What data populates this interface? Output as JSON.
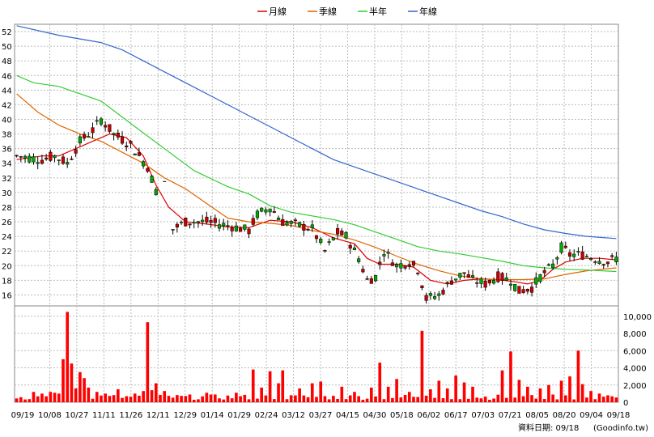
{
  "chart_data": [
    {
      "type": "candlestick",
      "y_ticks": [
        16,
        18,
        20,
        22,
        24,
        26,
        28,
        30,
        32,
        34,
        36,
        38,
        40,
        42,
        44,
        46,
        48,
        50,
        52
      ],
      "ylim": [
        14.5,
        53
      ],
      "x_tick_labels": [
        "09/19",
        "10/08",
        "10/27",
        "11/11",
        "11/26",
        "12/11",
        "12/29",
        "01/14",
        "01/29",
        "02/24",
        "03/12",
        "03/27",
        "04/15",
        "04/30",
        "05/18",
        "06/02",
        "06/17",
        "07/03",
        "07/21",
        "08/05",
        "08/20",
        "09/04",
        "09/18"
      ],
      "grid": true,
      "legend_position": "top-center",
      "up_color": "#cc0000",
      "down_color": "#00aa00",
      "price_path": [
        [
          0,
          35
        ],
        [
          6,
          34.5
        ],
        [
          9,
          35
        ],
        [
          12,
          34
        ],
        [
          15,
          37
        ],
        [
          18,
          38.5
        ],
        [
          20,
          40
        ],
        [
          23,
          38
        ],
        [
          27,
          36.5
        ],
        [
          31,
          33.5
        ],
        [
          35,
          27
        ],
        [
          37,
          25
        ],
        [
          40,
          26
        ],
        [
          45,
          26
        ],
        [
          50,
          25.5
        ],
        [
          55,
          24.8
        ],
        [
          57,
          27
        ],
        [
          60,
          28
        ],
        [
          63,
          26
        ],
        [
          67,
          25.5
        ],
        [
          70,
          25
        ],
        [
          73,
          22
        ],
        [
          76,
          24.5
        ],
        [
          78,
          24
        ],
        [
          81,
          21
        ],
        [
          83,
          18
        ],
        [
          85,
          18.5
        ],
        [
          87,
          22
        ],
        [
          90,
          20
        ],
        [
          93,
          20.5
        ],
        [
          95,
          19.5
        ],
        [
          97,
          15.5
        ],
        [
          100,
          16
        ],
        [
          103,
          18
        ],
        [
          106,
          19
        ],
        [
          108,
          18
        ],
        [
          111,
          17.5
        ],
        [
          114,
          18.5
        ],
        [
          117,
          18
        ],
        [
          119,
          16.5
        ],
        [
          122,
          17
        ],
        [
          124,
          18.5
        ],
        [
          127,
          20
        ],
        [
          129,
          22.5
        ],
        [
          131,
          21.5
        ],
        [
          134,
          21.5
        ],
        [
          137,
          21
        ],
        [
          140,
          20.5
        ],
        [
          142,
          21
        ]
      ],
      "series": [
        {
          "name": "月線",
          "color": "#dd0000",
          "points": [
            [
              0,
              34.5
            ],
            [
              6,
              35
            ],
            [
              10,
              35
            ],
            [
              14,
              36
            ],
            [
              18,
              37
            ],
            [
              22,
              38
            ],
            [
              26,
              37.5
            ],
            [
              30,
              35
            ],
            [
              33,
              31
            ],
            [
              36,
              28
            ],
            [
              40,
              26
            ],
            [
              45,
              25.7
            ],
            [
              50,
              25.3
            ],
            [
              55,
              25.2
            ],
            [
              60,
              26.2
            ],
            [
              65,
              26
            ],
            [
              70,
              25.2
            ],
            [
              75,
              23.8
            ],
            [
              80,
              23
            ],
            [
              83,
              21
            ],
            [
              86,
              20.2
            ],
            [
              90,
              20.2
            ],
            [
              94,
              19.8
            ],
            [
              98,
              18
            ],
            [
              102,
              17.5
            ],
            [
              106,
              18
            ],
            [
              110,
              18.2
            ],
            [
              114,
              18.1
            ],
            [
              118,
              17.8
            ],
            [
              121,
              17.5
            ],
            [
              124,
              18
            ],
            [
              127,
              19.5
            ],
            [
              130,
              20.5
            ],
            [
              134,
              21
            ],
            [
              138,
              21
            ],
            [
              142,
              20.8
            ]
          ]
        },
        {
          "name": "季線",
          "color": "#dd6600",
          "points": [
            [
              0,
              43.5
            ],
            [
              5,
              41
            ],
            [
              10,
              39.2
            ],
            [
              15,
              38
            ],
            [
              20,
              37
            ],
            [
              25,
              35.5
            ],
            [
              30,
              34
            ],
            [
              35,
              32
            ],
            [
              40,
              30.5
            ],
            [
              45,
              28.5
            ],
            [
              50,
              26.5
            ],
            [
              55,
              26
            ],
            [
              60,
              25.8
            ],
            [
              65,
              25.5
            ],
            [
              70,
              24.8
            ],
            [
              75,
              24.3
            ],
            [
              80,
              23.5
            ],
            [
              85,
              22.5
            ],
            [
              90,
              21.3
            ],
            [
              95,
              20.2
            ],
            [
              100,
              19.3
            ],
            [
              105,
              18.6
            ],
            [
              110,
              18.2
            ],
            [
              115,
              18.1
            ],
            [
              120,
              18.1
            ],
            [
              125,
              18.2
            ],
            [
              130,
              18.8
            ],
            [
              135,
              19.3
            ],
            [
              142,
              19.7
            ]
          ]
        },
        {
          "name": "半年",
          "color": "#33cc33",
          "points": [
            [
              0,
              46
            ],
            [
              4,
              45
            ],
            [
              10,
              44.5
            ],
            [
              20,
              42.5
            ],
            [
              28,
              39
            ],
            [
              35,
              36
            ],
            [
              42,
              33
            ],
            [
              50,
              30.8
            ],
            [
              55,
              29.8
            ],
            [
              60,
              28.2
            ],
            [
              65,
              27.3
            ],
            [
              70,
              26.8
            ],
            [
              75,
              26.3
            ],
            [
              80,
              25.6
            ],
            [
              85,
              24.6
            ],
            [
              90,
              23.6
            ],
            [
              95,
              22.6
            ],
            [
              100,
              22
            ],
            [
              105,
              21.6
            ],
            [
              110,
              21.1
            ],
            [
              115,
              20.6
            ],
            [
              120,
              20
            ],
            [
              125,
              19.7
            ],
            [
              130,
              19.5
            ],
            [
              135,
              19.4
            ],
            [
              142,
              19.2
            ]
          ]
        },
        {
          "name": "年線",
          "color": "#3366cc",
          "points": [
            [
              0,
              52.8
            ],
            [
              10,
              51.5
            ],
            [
              20,
              50.5
            ],
            [
              25,
              49.5
            ],
            [
              30,
              48
            ],
            [
              35,
              46.5
            ],
            [
              40,
              45
            ],
            [
              45,
              43.5
            ],
            [
              50,
              42
            ],
            [
              55,
              40.5
            ],
            [
              60,
              39
            ],
            [
              65,
              37.5
            ],
            [
              70,
              36
            ],
            [
              75,
              34.5
            ],
            [
              80,
              33.5
            ],
            [
              85,
              32.5
            ],
            [
              90,
              31.5
            ],
            [
              95,
              30.5
            ],
            [
              100,
              29.5
            ],
            [
              105,
              28.5
            ],
            [
              110,
              27.5
            ],
            [
              115,
              26.7
            ],
            [
              120,
              25.7
            ],
            [
              125,
              24.9
            ],
            [
              130,
              24.4
            ],
            [
              135,
              24
            ],
            [
              142,
              23.7
            ]
          ]
        }
      ]
    },
    {
      "type": "bar",
      "y_tick_labels": [
        "0",
        "2,000",
        "4,000",
        "6,000",
        "8,000",
        "10,000"
      ],
      "ylim": [
        0,
        11200
      ],
      "bar_color": "#ff0000",
      "volume_baseline": 700,
      "volume_spikes": [
        [
          4,
          1200
        ],
        [
          6,
          1000
        ],
        [
          8,
          1200
        ],
        [
          9,
          1100
        ],
        [
          10,
          1000
        ],
        [
          11,
          5000
        ],
        [
          12,
          10500
        ],
        [
          13,
          4500
        ],
        [
          14,
          1600
        ],
        [
          15,
          3500
        ],
        [
          16,
          2800
        ],
        [
          17,
          1700
        ],
        [
          19,
          1200
        ],
        [
          21,
          1000
        ],
        [
          24,
          1500
        ],
        [
          28,
          1000
        ],
        [
          30,
          1300
        ],
        [
          31,
          9300
        ],
        [
          32,
          1400
        ],
        [
          33,
          2200
        ],
        [
          35,
          1300
        ],
        [
          45,
          1100
        ],
        [
          52,
          1100
        ],
        [
          56,
          3800
        ],
        [
          58,
          1700
        ],
        [
          60,
          3600
        ],
        [
          62,
          2200
        ],
        [
          63,
          3700
        ],
        [
          67,
          1600
        ],
        [
          70,
          2200
        ],
        [
          72,
          2400
        ],
        [
          77,
          1800
        ],
        [
          80,
          1200
        ],
        [
          84,
          1700
        ],
        [
          86,
          4600
        ],
        [
          88,
          1800
        ],
        [
          90,
          2700
        ],
        [
          93,
          1200
        ],
        [
          96,
          8300
        ],
        [
          98,
          1500
        ],
        [
          100,
          2500
        ],
        [
          102,
          1600
        ],
        [
          104,
          3100
        ],
        [
          106,
          2300
        ],
        [
          108,
          1800
        ],
        [
          115,
          3700
        ],
        [
          117,
          5900
        ],
        [
          119,
          2600
        ],
        [
          121,
          1800
        ],
        [
          124,
          1600
        ],
        [
          126,
          2000
        ],
        [
          129,
          2500
        ],
        [
          131,
          3000
        ],
        [
          133,
          6000
        ],
        [
          134,
          2100
        ],
        [
          136,
          1300
        ],
        [
          138,
          1000
        ],
        [
          140,
          800
        ]
      ]
    }
  ],
  "legend": [
    {
      "label": "月線",
      "color": "#dd0000"
    },
    {
      "label": "季線",
      "color": "#dd6600"
    },
    {
      "label": "半年",
      "color": "#33cc33"
    },
    {
      "label": "年線",
      "color": "#3366cc"
    }
  ],
  "footer": {
    "date_label": "資料日期: 09/18",
    "source": "(Goodinfo.tw)"
  }
}
